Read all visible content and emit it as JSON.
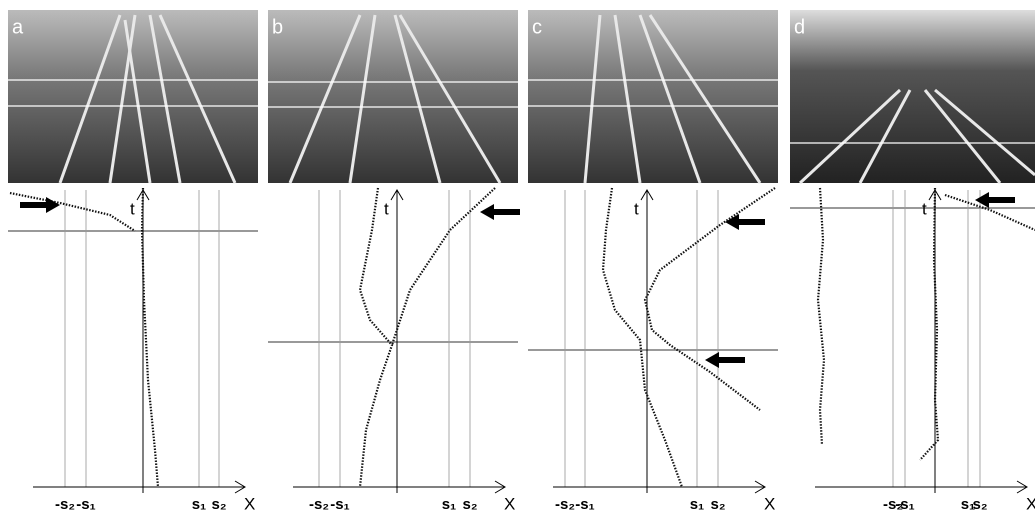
{
  "panels": [
    {
      "label": "a",
      "t": "t",
      "x": "X",
      "ticks": [
        "-s₂",
        "-s₁",
        "s₁",
        "s₂"
      ]
    },
    {
      "label": "b",
      "t": "t",
      "x": "X",
      "ticks": [
        "-s₂",
        "-s₁",
        "s₁",
        "s₂"
      ]
    },
    {
      "label": "c",
      "t": "t",
      "x": "X",
      "ticks": [
        "-s₂",
        "-s₁",
        "s₁",
        "s₂"
      ]
    },
    {
      "label": "d",
      "t": "t",
      "x": "X",
      "ticks": [
        "-s₂",
        "-s₁",
        "s₁",
        "s₂"
      ]
    }
  ]
}
